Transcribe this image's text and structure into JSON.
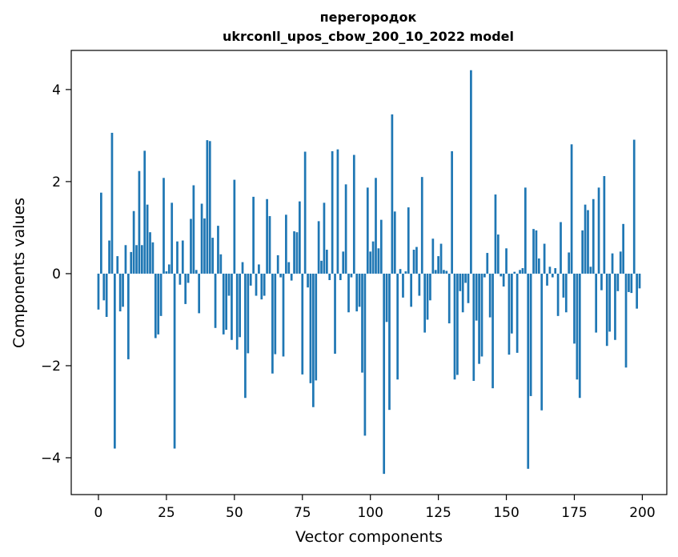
{
  "chart_data": {
    "type": "bar",
    "title": "перегородок",
    "subtitle": "ukrconll_upos_cbow_200_10_2022 model",
    "xlabel": "Vector components",
    "ylabel": "Components values",
    "xlim": [
      -10,
      209
    ],
    "ylim": [
      -4.8,
      4.85
    ],
    "xticks": [
      0,
      25,
      50,
      75,
      100,
      125,
      150,
      175,
      200
    ],
    "xtick_labels": [
      "0",
      "25",
      "50",
      "75",
      "100",
      "125",
      "150",
      "175",
      "200"
    ],
    "yticks": [
      -4,
      -2,
      0,
      2,
      4
    ],
    "ytick_labels": [
      "−4",
      "−2",
      "0",
      "2",
      "4"
    ],
    "grid": false,
    "bar_color": "#1f77b4",
    "x": [
      0,
      1,
      2,
      3,
      4,
      5,
      6,
      7,
      8,
      9,
      10,
      11,
      12,
      13,
      14,
      15,
      16,
      17,
      18,
      19,
      20,
      21,
      22,
      23,
      24,
      25,
      26,
      27,
      28,
      29,
      30,
      31,
      32,
      33,
      34,
      35,
      36,
      37,
      38,
      39,
      40,
      41,
      42,
      43,
      44,
      45,
      46,
      47,
      48,
      49,
      50,
      51,
      52,
      53,
      54,
      55,
      56,
      57,
      58,
      59,
      60,
      61,
      62,
      63,
      64,
      65,
      66,
      67,
      68,
      69,
      70,
      71,
      72,
      73,
      74,
      75,
      76,
      77,
      78,
      79,
      80,
      81,
      82,
      83,
      84,
      85,
      86,
      87,
      88,
      89,
      90,
      91,
      92,
      93,
      94,
      95,
      96,
      97,
      98,
      99,
      100,
      101,
      102,
      103,
      104,
      105,
      106,
      107,
      108,
      109,
      110,
      111,
      112,
      113,
      114,
      115,
      116,
      117,
      118,
      119,
      120,
      121,
      122,
      123,
      124,
      125,
      126,
      127,
      128,
      129,
      130,
      131,
      132,
      133,
      134,
      135,
      136,
      137,
      138,
      139,
      140,
      141,
      142,
      143,
      144,
      145,
      146,
      147,
      148,
      149,
      150,
      151,
      152,
      153,
      154,
      155,
      156,
      157,
      158,
      159,
      160,
      161,
      162,
      163,
      164,
      165,
      166,
      167,
      168,
      169,
      170,
      171,
      172,
      173,
      174,
      175,
      176,
      177,
      178,
      179,
      180,
      181,
      182,
      183,
      184,
      185,
      186,
      187,
      188,
      189,
      190,
      191,
      192,
      193,
      194,
      195,
      196,
      197,
      198,
      199
    ],
    "values": [
      -0.78,
      1.76,
      -0.58,
      -0.94,
      0.72,
      3.06,
      -3.8,
      0.38,
      -0.82,
      -0.72,
      0.62,
      -1.86,
      0.47,
      1.36,
      0.62,
      2.23,
      0.62,
      2.67,
      1.5,
      0.9,
      0.68,
      -1.4,
      -1.32,
      -0.92,
      2.08,
      0.05,
      0.2,
      1.54,
      -3.8,
      0.7,
      -0.24,
      0.72,
      -0.66,
      -0.2,
      1.19,
      1.92,
      0.08,
      -0.86,
      1.52,
      1.2,
      2.9,
      2.88,
      0.78,
      -1.18,
      1.04,
      0.42,
      -1.32,
      -1.22,
      -0.48,
      -1.44,
      2.04,
      -1.65,
      -1.38,
      0.25,
      -2.7,
      -1.73,
      -0.26,
      1.67,
      -0.48,
      0.2,
      -0.56,
      -0.48,
      1.62,
      1.25,
      -2.17,
      -1.75,
      0.4,
      -0.08,
      -1.8,
      1.28,
      0.25,
      -0.15,
      0.92,
      0.9,
      1.57,
      -2.19,
      2.65,
      -0.3,
      -2.38,
      -2.9,
      -2.32,
      1.14,
      0.28,
      1.54,
      0.52,
      -0.14,
      2.66,
      -1.74,
      2.7,
      -0.14,
      0.48,
      1.94,
      -0.84,
      -0.08,
      2.58,
      -0.82,
      -0.72,
      -2.15,
      -3.52,
      1.87,
      0.48,
      0.7,
      2.08,
      0.55,
      1.17,
      -4.35,
      -1.05,
      -2.96,
      3.46,
      1.35,
      -2.3,
      0.1,
      -0.52,
      0.05,
      1.44,
      -0.72,
      0.52,
      0.58,
      -0.48,
      2.1,
      -1.28,
      -1.0,
      -0.58,
      0.76,
      0.08,
      0.38,
      0.65,
      0.08,
      0.06,
      -1.08,
      2.66,
      -2.3,
      -2.2,
      -0.38,
      -0.84,
      -0.2,
      -0.64,
      4.42,
      -2.33,
      -1.02,
      -1.96,
      -1.8,
      -0.08,
      0.45,
      -0.95,
      -2.49,
      1.72,
      0.85,
      -0.06,
      -0.28,
      0.55,
      -1.76,
      -1.3,
      0.04,
      -1.72,
      0.08,
      0.12,
      1.87,
      -4.24,
      -2.66,
      0.97,
      0.94,
      0.33,
      -2.97,
      0.65,
      -0.26,
      0.15,
      -0.08,
      0.12,
      -0.92,
      1.12,
      -0.52,
      -0.84,
      0.46,
      2.81,
      -1.52,
      -2.3,
      -2.7,
      0.94,
      1.5,
      1.38,
      0.15,
      1.62,
      -1.28,
      1.87,
      -0.36,
      2.12,
      -1.57,
      -1.26,
      0.44,
      -1.44,
      -0.38,
      0.48,
      1.08,
      -2.04,
      -0.4,
      -0.42,
      2.91,
      -0.76,
      -0.32
    ]
  }
}
